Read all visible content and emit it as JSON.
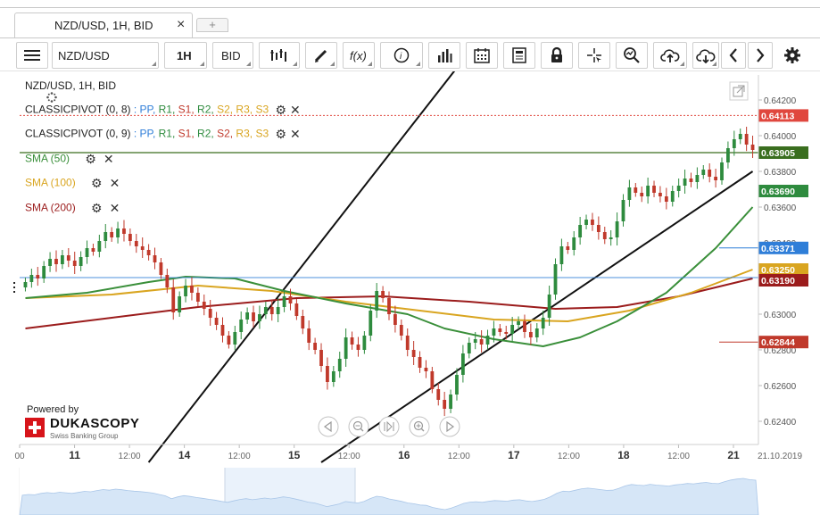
{
  "tab": {
    "title": "NZD/USD, 1H, BID",
    "close_glyph": "×",
    "new_glyph": "+"
  },
  "toolbar": {
    "instrument": "NZD/USD",
    "period": "1H",
    "side": "BID",
    "tools": [
      "candle-type-icon",
      "draw-pencil-icon",
      "function-icon",
      "info-icon",
      "volume-bars-icon",
      "calendar-icon",
      "news-icon",
      "lock-icon",
      "crosshair-icon",
      "zoom-icon",
      "upload-icon",
      "download-icon",
      "chevron-left-icon",
      "chevron-right-icon",
      "gear-icon"
    ]
  },
  "legend": {
    "title": "NZD/USD, 1H, BID",
    "pivot1": {
      "name": "CLASSICPIVOT (0, 8)",
      "sep": " : ",
      "pp": "PP,",
      "r1": "R1,",
      "s1": "S1,",
      "r2": "R2,",
      "s2": "S2,",
      "r3": "R3,",
      "s3": "S3"
    },
    "pivot2": {
      "name": "CLASSICPIVOT (0, 9)",
      "sep": " : ",
      "pp": "PP,",
      "r1": "R1,",
      "s1": "S1,",
      "r2": "R2,",
      "s2": "S2,",
      "r3": "R3,",
      "s3": "S3"
    },
    "sma50": "SMA (50)",
    "sma100": "SMA (100)",
    "sma200": "SMA (200)"
  },
  "branding": {
    "powered_by": "Powered by",
    "brand": "DUKASCOPY",
    "tagline": "Swiss Banking Group"
  },
  "colors": {
    "candle_up": "#2e8b3e",
    "candle_down": "#c0392b",
    "sma50": "#3a8f3a",
    "sma100": "#d9a520",
    "sma200": "#9b1c1c",
    "pp": "#2f7ed8",
    "r1": "#2e8b3e",
    "s1": "#c0392b",
    "r2": "#2e8b3e",
    "s2": "#d9a520",
    "r3": "#d9a520",
    "s3": "#d9a520"
  },
  "chart_data": {
    "type": "candlestick",
    "instrument": "NZD/USD",
    "timeframe": "1H",
    "price_side": "BID",
    "y_ticks": [
      "0.64200",
      "0.64000",
      "0.63800",
      "0.63600",
      "0.63400",
      "0.63200",
      "0.63000",
      "0.62800",
      "0.62600",
      "0.62400"
    ],
    "y_tick_values": [
      0.642,
      0.64,
      0.638,
      0.636,
      0.634,
      0.632,
      0.63,
      0.628,
      0.626,
      0.624
    ],
    "ylim": [
      0.6227,
      0.6434
    ],
    "x_ticks": [
      {
        "label": "00",
        "major": false,
        "pos": 0.0
      },
      {
        "label": "11",
        "major": true,
        "pos": 0.5
      },
      {
        "label": "12:00",
        "major": false,
        "pos": 1.0
      },
      {
        "label": "14",
        "major": true,
        "pos": 1.5
      },
      {
        "label": "12:00",
        "major": false,
        "pos": 2.0
      },
      {
        "label": "15",
        "major": true,
        "pos": 2.5
      },
      {
        "label": "12:00",
        "major": false,
        "pos": 3.0
      },
      {
        "label": "16",
        "major": true,
        "pos": 3.5
      },
      {
        "label": "12:00",
        "major": false,
        "pos": 4.0
      },
      {
        "label": "17",
        "major": true,
        "pos": 4.5
      },
      {
        "label": "12:00",
        "major": false,
        "pos": 5.0
      },
      {
        "label": "18",
        "major": true,
        "pos": 5.5
      },
      {
        "label": "12:00",
        "major": false,
        "pos": 6.0
      },
      {
        "label": "21",
        "major": true,
        "pos": 6.5
      }
    ],
    "x_end_label": "21.10.2019",
    "price_labels": [
      {
        "value": 0.64113,
        "label": "0.64113",
        "color": "#e0473e",
        "style": "dashed"
      },
      {
        "value": 0.63905,
        "label": "0.63905",
        "color": "#3a6e1f",
        "style": "solid"
      },
      {
        "value": 0.6369,
        "label": "0.63690",
        "color": "#2e8b3e",
        "style": "none"
      },
      {
        "value": 0.63371,
        "label": "0.63371",
        "color": "#2f7ed8",
        "style": "short"
      },
      {
        "value": 0.6325,
        "label": "0.63250",
        "color": "#d9a520",
        "style": "none"
      },
      {
        "value": 0.6319,
        "label": "0.63190",
        "color": "#9b1c1c",
        "style": "none"
      },
      {
        "value": 0.62844,
        "label": "0.62844",
        "color": "#c0392b",
        "style": "short"
      }
    ],
    "pp_line": 0.63205,
    "candles_close": [
      0.6318,
      0.6322,
      0.632,
      0.6327,
      0.6331,
      0.6328,
      0.6333,
      0.633,
      0.6327,
      0.6332,
      0.6337,
      0.6335,
      0.6341,
      0.6346,
      0.6343,
      0.6348,
      0.6345,
      0.6341,
      0.6338,
      0.6336,
      0.6333,
      0.6329,
      0.6322,
      0.6315,
      0.6301,
      0.631,
      0.6316,
      0.6312,
      0.6307,
      0.6303,
      0.6298,
      0.6294,
      0.6288,
      0.6283,
      0.629,
      0.6297,
      0.6301,
      0.6296,
      0.63,
      0.6304,
      0.63,
      0.6304,
      0.631,
      0.6306,
      0.6299,
      0.6292,
      0.6284,
      0.628,
      0.6271,
      0.6262,
      0.6268,
      0.6275,
      0.6287,
      0.6283,
      0.628,
      0.6288,
      0.6302,
      0.6313,
      0.6309,
      0.63,
      0.6294,
      0.6288,
      0.628,
      0.6276,
      0.627,
      0.6268,
      0.6258,
      0.6252,
      0.6247,
      0.6255,
      0.6266,
      0.6278,
      0.6284,
      0.6286,
      0.6283,
      0.6288,
      0.6292,
      0.629,
      0.6289,
      0.6294,
      0.6296,
      0.629,
      0.6287,
      0.6292,
      0.6298,
      0.6311,
      0.6328,
      0.6338,
      0.6336,
      0.6343,
      0.635,
      0.6353,
      0.635,
      0.6346,
      0.6342,
      0.6343,
      0.6352,
      0.6364,
      0.6371,
      0.6368,
      0.6366,
      0.6372,
      0.6368,
      0.6366,
      0.6363,
      0.6369,
      0.6372,
      0.6376,
      0.6374,
      0.6378,
      0.6381,
      0.6377,
      0.6375,
      0.6385,
      0.6393,
      0.6398,
      0.6401,
      0.6395,
      0.6392
    ],
    "sma50": [
      [
        0,
        0.6309
      ],
      [
        10,
        0.6312
      ],
      [
        20,
        0.6318
      ],
      [
        26,
        0.6321
      ],
      [
        34,
        0.632
      ],
      [
        42,
        0.6313
      ],
      [
        52,
        0.6306
      ],
      [
        62,
        0.63
      ],
      [
        68,
        0.6292
      ],
      [
        76,
        0.6286
      ],
      [
        84,
        0.6282
      ],
      [
        90,
        0.6287
      ],
      [
        96,
        0.6296
      ],
      [
        104,
        0.6312
      ],
      [
        112,
        0.6337
      ],
      [
        118,
        0.636
      ]
    ],
    "sma100": [
      [
        0,
        0.6309
      ],
      [
        14,
        0.6311
      ],
      [
        28,
        0.6316
      ],
      [
        40,
        0.6313
      ],
      [
        52,
        0.6307
      ],
      [
        64,
        0.6302
      ],
      [
        76,
        0.6297
      ],
      [
        88,
        0.6296
      ],
      [
        98,
        0.6302
      ],
      [
        108,
        0.6312
      ],
      [
        118,
        0.6325
      ]
    ],
    "sma200": [
      [
        0,
        0.6292
      ],
      [
        14,
        0.6298
      ],
      [
        28,
        0.6304
      ],
      [
        44,
        0.6309
      ],
      [
        58,
        0.631
      ],
      [
        72,
        0.6307
      ],
      [
        86,
        0.6303
      ],
      [
        96,
        0.6304
      ],
      [
        106,
        0.631
      ],
      [
        118,
        0.632
      ]
    ],
    "channel_upper": [
      [
        20,
        0.6217
      ],
      [
        70,
        0.6438
      ]
    ],
    "channel_lower": [
      [
        48,
        0.6217
      ],
      [
        118,
        0.638
      ]
    ]
  }
}
